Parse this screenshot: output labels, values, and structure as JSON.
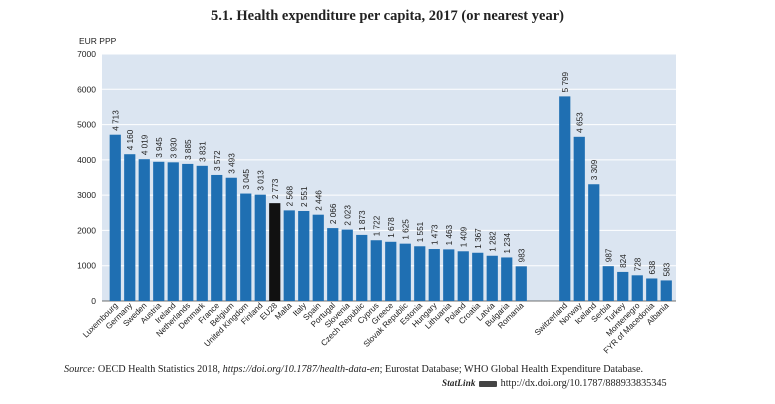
{
  "title": "5.1.  Health expenditure per capita, 2017 (or nearest year)",
  "source": {
    "label": "Source:",
    "text_a": "  OECD Health Statistics 2018, ",
    "link": "https://doi.org/10.1787/health-data-en",
    "text_b": "; Eurostat Database; WHO Global Health Expenditure Database."
  },
  "statlink": {
    "brand": "StatLink",
    "url": "http://dx.doi.org/10.1787/888933835345"
  },
  "colors": {
    "bar": "#1f6fb2",
    "highlight": "#111111",
    "plot_bg": "#dbe5f1",
    "grid": "#ffffff"
  },
  "chart_data": {
    "type": "bar",
    "ylabel": "EUR PPP",
    "ylim": [
      0,
      7000
    ],
    "yticks": [
      0,
      1000,
      2000,
      3000,
      4000,
      5000,
      6000,
      7000
    ],
    "grid": true,
    "groups": [
      {
        "categories": [
          "Luxembourg",
          "Germany",
          "Sweden",
          "Austria",
          "Ireland",
          "Netherlands",
          "Denmark",
          "France",
          "Belgium",
          "United Kingdom",
          "Finland",
          "EU28",
          "Malta",
          "Italy",
          "Spain",
          "Portugal",
          "Slovenia",
          "Czech Republic",
          "Cyprus",
          "Greece",
          "Slovak Republic",
          "Estonia",
          "Hungary",
          "Lithuania",
          "Poland",
          "Croatia",
          "Latvia",
          "Bulgaria",
          "Romania"
        ],
        "values": [
          4713,
          4160,
          4019,
          3945,
          3930,
          3885,
          3831,
          3572,
          3493,
          3045,
          3013,
          2773,
          2568,
          2551,
          2446,
          2066,
          2023,
          1873,
          1722,
          1678,
          1625,
          1551,
          1473,
          1463,
          1409,
          1367,
          1282,
          1234,
          983
        ],
        "labels": [
          "4 713",
          "4 160",
          "4 019",
          "3 945",
          "3 930",
          "3 885",
          "3 831",
          "3 572",
          "3 493",
          "3 045",
          "3 013",
          "2 773",
          "2 568",
          "2 551",
          "2 446",
          "2 066",
          "2 023",
          "1 873",
          "1 722",
          "1 678",
          "1 625",
          "1 551",
          "1 473",
          "1 463",
          "1 409",
          "1 367",
          "1 282",
          "1 234",
          "983"
        ]
      },
      {
        "categories": [
          "Switzerland",
          "Norway",
          "Iceland",
          "Serbia",
          "Turkey",
          "Montenegro",
          "FYR of Macedonia",
          "Albania"
        ],
        "values": [
          5799,
          4653,
          3309,
          987,
          824,
          728,
          638,
          583
        ],
        "labels": [
          "5 799",
          "4 653",
          "3 309",
          "987",
          "824",
          "728",
          "638",
          "583"
        ]
      }
    ],
    "highlight_category": "EU28"
  }
}
